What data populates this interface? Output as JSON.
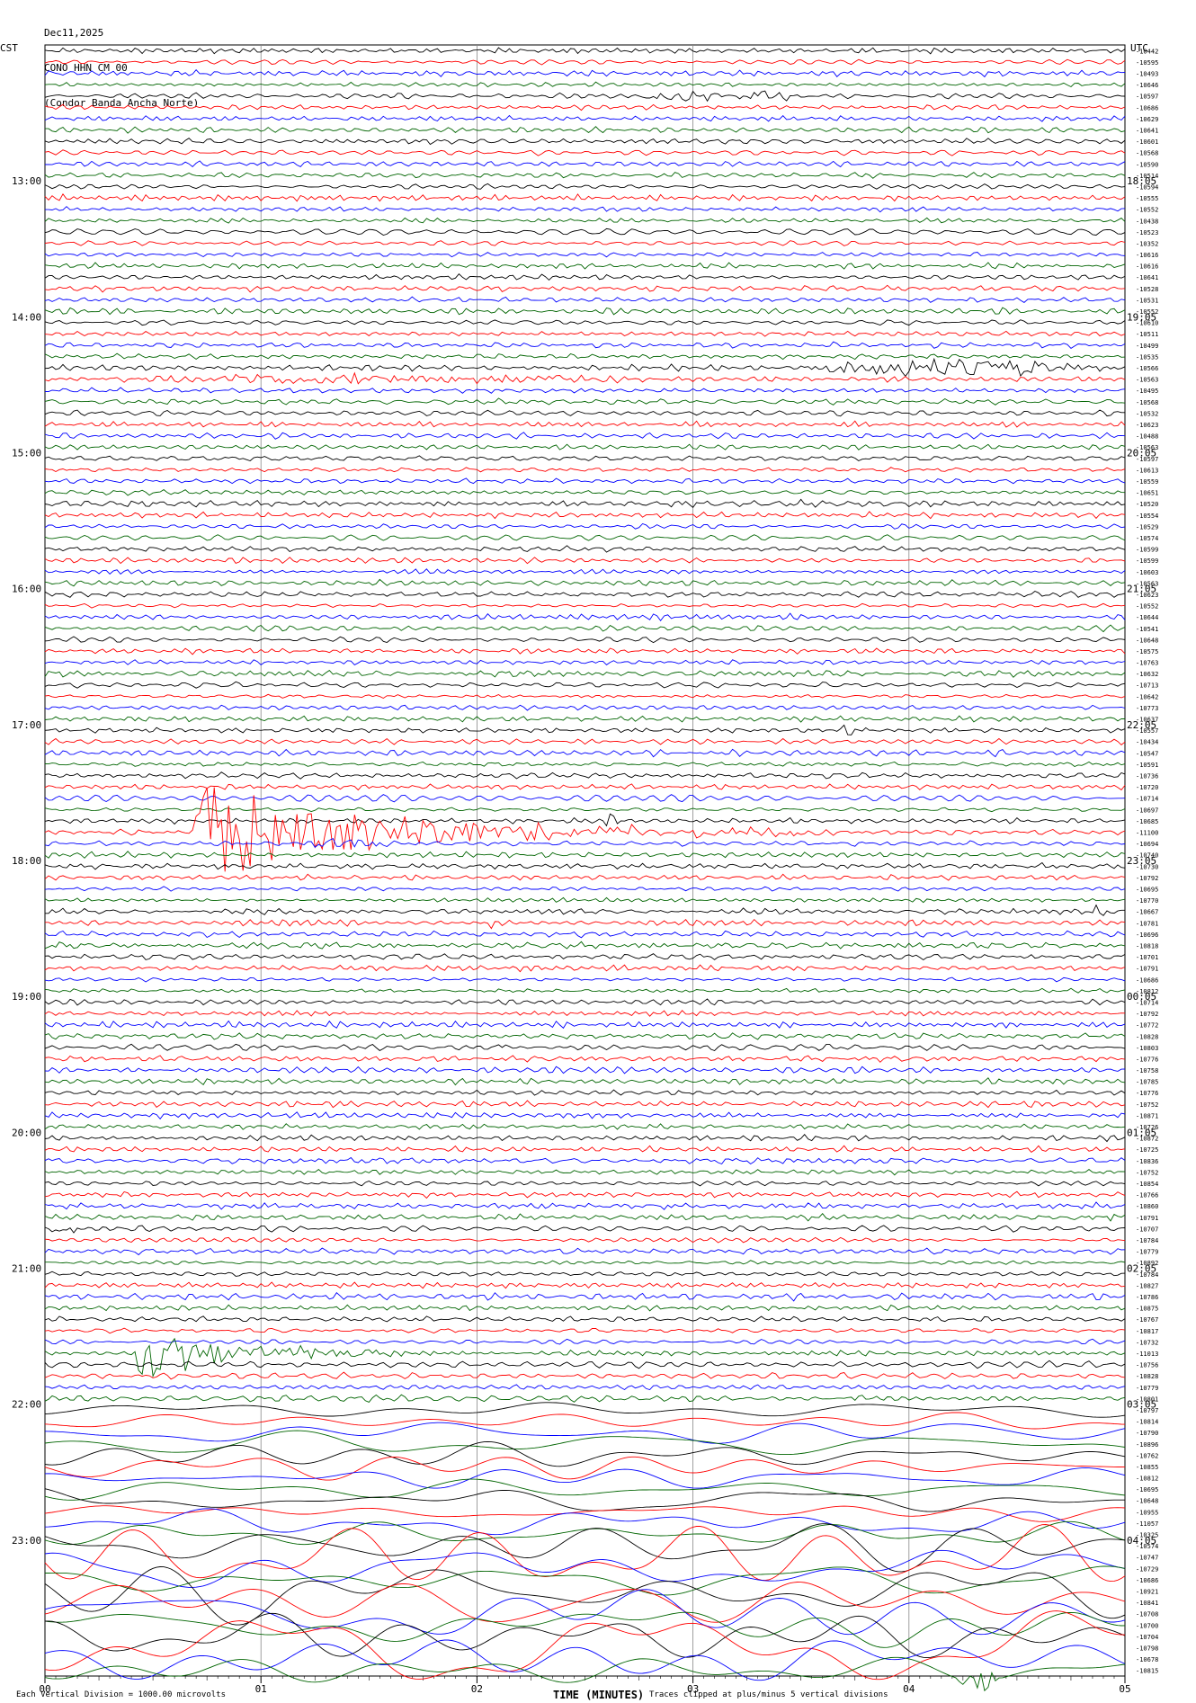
{
  "header": {
    "date": "Dec11,2025",
    "station": "CONO HHN CM 00",
    "name": "(Condor Banda Ancha Norte)"
  },
  "footer": {
    "scale_note": "Each Vertical Division = 1000.00 microvolts",
    "clip_note": "Traces clipped at plus/minus 5 vertical divisions",
    "xlabel": "TIME (MINUTES)"
  },
  "colors": {
    "cycle": [
      "#000000",
      "#ff0000",
      "#0000ff",
      "#006400"
    ],
    "grid": "#888888"
  },
  "chart_data": {
    "type": "line",
    "title": "CONO HHN CM 00 (Condor Banda Ancha Norte)",
    "xlabel": "TIME (MINUTES)",
    "left_axis_label": "CST",
    "right_axis_label": "UTC",
    "x_ticks": [
      "00",
      "01",
      "02",
      "03",
      "04",
      "05"
    ],
    "xlim": [
      0,
      5
    ],
    "left_time_labels": [
      {
        "label": "13:00",
        "trace": 12
      },
      {
        "label": "14:00",
        "trace": 24
      },
      {
        "label": "15:00",
        "trace": 36
      },
      {
        "label": "16:00",
        "trace": 48
      },
      {
        "label": "17:00",
        "trace": 60
      },
      {
        "label": "18:00",
        "trace": 72
      },
      {
        "label": "19:00",
        "trace": 84
      },
      {
        "label": "20:00",
        "trace": 96
      },
      {
        "label": "21:00",
        "trace": 108
      },
      {
        "label": "22:00",
        "trace": 120
      },
      {
        "label": "23:00",
        "trace": 132
      }
    ],
    "right_time_labels": [
      {
        "label": "18:05",
        "trace": 12
      },
      {
        "label": "19:05",
        "trace": 24
      },
      {
        "label": "20:05",
        "trace": 36
      },
      {
        "label": "21:05",
        "trace": 48
      },
      {
        "label": "22:05",
        "trace": 60
      },
      {
        "label": "23:05",
        "trace": 72
      },
      {
        "label": "00:05",
        "trace": 84
      },
      {
        "label": "01:05",
        "trace": 96
      },
      {
        "label": "02:05",
        "trace": 108
      },
      {
        "label": "03:05",
        "trace": 120
      },
      {
        "label": "04:05",
        "trace": 132
      }
    ],
    "trace_offsets": [
      "-10442",
      "-10595",
      "-10493",
      "-10646",
      "-10597",
      "-10686",
      "-10629",
      "-10641",
      "-10601",
      "-10568",
      "-10590",
      "-10514",
      "-10594",
      "-10555",
      "-10552",
      "-10438",
      "-10523",
      "-10352",
      "-10616",
      "-10616",
      "-10641",
      "-10528",
      "-10531",
      "-10552",
      "-10610",
      "-10511",
      "-10499",
      "-10535",
      "-10566",
      "-10563",
      "-10495",
      "-10568",
      "-10532",
      "-10623",
      "-10488",
      "-10563",
      "-10597",
      "-10613",
      "-10559",
      "-10651",
      "-10520",
      "-10554",
      "-10529",
      "-10574",
      "-10599",
      "-10599",
      "-10603",
      "-10563",
      "-10623",
      "-10552",
      "-10644",
      "-10541",
      "-10648",
      "-10575",
      "-10763",
      "-10632",
      "-10713",
      "-10642",
      "-10773",
      "-10637",
      "-10557",
      "-10434",
      "-10547",
      "-10591",
      "-10736",
      "-10720",
      "-10714",
      "-10697",
      "-10685",
      "-11100",
      "-10694",
      "-10740",
      "-10730",
      "-10792",
      "-10695",
      "-10770",
      "-10667",
      "-10781",
      "-10696",
      "-10818",
      "-10701",
      "-10791",
      "-10686",
      "-10812",
      "-10714",
      "-10792",
      "-10772",
      "-10828",
      "-10803",
      "-10776",
      "-10758",
      "-10785",
      "-10776",
      "-10752",
      "-10871",
      "-10726",
      "-10872",
      "-10725",
      "-10836",
      "-10752",
      "-10854",
      "-10766",
      "-10860",
      "-10791",
      "-10707",
      "-10784",
      "-10779",
      "-10892",
      "-10784",
      "-10827",
      "-10786",
      "-10875",
      "-10767",
      "-10817",
      "-10732",
      "-11013",
      "-10756",
      "-10828",
      "-10779",
      "-10801",
      "-10797",
      "-10814",
      "-10790",
      "-10896",
      "-10762",
      "-10855",
      "-10812",
      "-10695",
      "-10648",
      "-10955",
      "-11057",
      "-10325",
      "-10574",
      "-10747",
      "-10729",
      "-10686",
      "-10921",
      "-10841",
      "-10708",
      "-10700",
      "-10704",
      "-10798",
      "-10678",
      "-10815"
    ],
    "events": [
      {
        "trace": 4,
        "start_min": 2.6,
        "end_min": 3.6,
        "amp": 0.45
      },
      {
        "trace": 28,
        "start_min": 3.4,
        "end_min": 5.0,
        "amp": 0.9
      },
      {
        "trace": 29,
        "start_min": 0.0,
        "end_min": 3.1,
        "amp": 0.4
      },
      {
        "trace": 60,
        "start_min": 3.65,
        "end_min": 3.8,
        "amp": 0.5
      },
      {
        "trace": 69,
        "start_min": 0.68,
        "end_min": 3.6,
        "amp": 5.0
      },
      {
        "trace": 68,
        "start_min": 2.58,
        "end_min": 2.66,
        "amp": 0.6
      },
      {
        "trace": 70,
        "start_min": 1.2,
        "end_min": 1.6,
        "amp": 0.5
      },
      {
        "trace": 76,
        "start_min": 4.45,
        "end_min": 4.5,
        "amp": 0.7
      },
      {
        "trace": 76,
        "start_min": 4.85,
        "end_min": 4.92,
        "amp": 0.7
      },
      {
        "trace": 77,
        "start_min": 2.05,
        "end_min": 2.1,
        "amp": 0.6
      },
      {
        "trace": 88,
        "start_min": 2.05,
        "end_min": 2.15,
        "amp": 0.4
      },
      {
        "trace": 101,
        "start_min": 2.97,
        "end_min": 3.0,
        "amp": 0.6
      },
      {
        "trace": 102,
        "start_min": 2.85,
        "end_min": 2.9,
        "amp": 0.6
      },
      {
        "trace": 103,
        "start_min": 4.7,
        "end_min": 5.0,
        "amp": 0.4
      },
      {
        "trace": 104,
        "start_min": 0.0,
        "end_min": 0.2,
        "amp": 0.5
      },
      {
        "trace": 115,
        "start_min": 0.42,
        "end_min": 1.6,
        "amp": 3.5
      },
      {
        "trace": 119,
        "start_min": 3.7,
        "end_min": 3.9,
        "amp": 0.4
      },
      {
        "trace": 143,
        "start_min": 4.22,
        "end_min": 4.42,
        "amp": 1.6
      }
    ],
    "background_amp_by_hour": [
      0.35,
      0.35,
      0.35,
      0.35,
      0.35,
      0.35,
      0.35,
      0.35,
      0.35,
      0.35,
      1.6,
      3.2
    ],
    "grid": true
  }
}
